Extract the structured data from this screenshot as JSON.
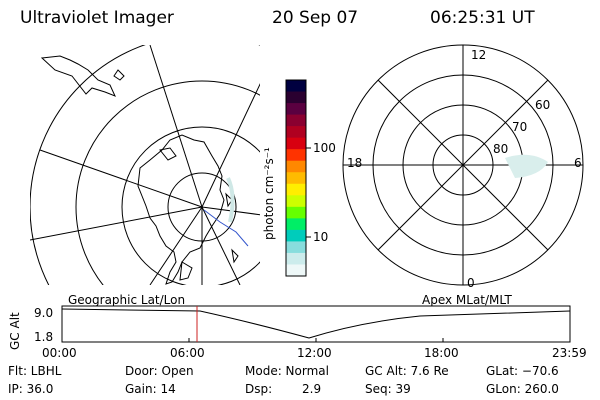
{
  "header": {
    "title": "Ultraviolet Imager",
    "date": "20 Sep 07",
    "time": "06:25:31 UT"
  },
  "colorbar": {
    "unit_label": "photon cm⁻²s⁻¹",
    "tick_labels": [
      "100",
      "10"
    ],
    "colors": [
      "#000040",
      "#2a0030",
      "#5a0040",
      "#8a0030",
      "#b00020",
      "#d80010",
      "#ff3300",
      "#ff8800",
      "#ffbb00",
      "#ffee00",
      "#ccff00",
      "#66ff00",
      "#00ee66",
      "#00ccbb",
      "#88dddd",
      "#ccecec",
      "#eef8f8"
    ]
  },
  "polar_plot": {
    "labels": {
      "top": "12",
      "bottom": "0",
      "left": "18",
      "right": "6"
    },
    "lat_labels": [
      "60",
      "70",
      "80"
    ]
  },
  "timeline": {
    "left_label": "Geographic Lat/Lon",
    "right_label": "Apex MLat/MLT",
    "axis_title": "GC Alt",
    "y_ticks": [
      "9.0",
      "1.8"
    ],
    "x_ticks": [
      "00:00",
      "06:00",
      "12:00",
      "18:00",
      "23:59"
    ]
  },
  "info": {
    "row1": {
      "flt": "Flt: LBHL",
      "door": "Door: Open",
      "mode": "Mode: Normal",
      "gcalt": "GC Alt: 7.6 Re",
      "glat": "GLat: −70.6"
    },
    "row2": {
      "ip": "IP: 36.0",
      "gain": "Gain: 14",
      "dsp_label": "Dsp:",
      "dsp_value": "2.9",
      "seq": "Seq: 39",
      "glon": "GLon: 260.0"
    }
  },
  "icons": {
    "globe_map": "geographic-map",
    "polar_grid": "magnetic-polar-grid"
  }
}
